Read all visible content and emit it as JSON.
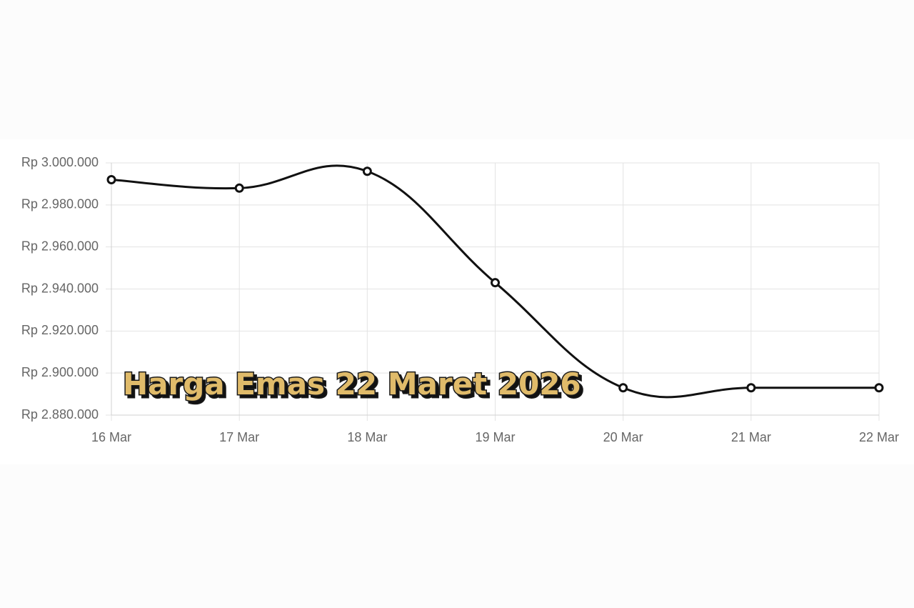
{
  "chart_data": {
    "type": "line",
    "title": "Harga Emas 22 Maret 2026",
    "categories": [
      "16 Mar",
      "17 Mar",
      "18 Mar",
      "19 Mar",
      "20 Mar",
      "21 Mar",
      "22 Mar"
    ],
    "series": [
      {
        "color": "#111111",
        "values": [
          2992000,
          2988000,
          2996000,
          2943000,
          2893000,
          2893000,
          2893000
        ]
      }
    ],
    "ylim": [
      2880000,
      3000000
    ],
    "yticks": [
      {
        "value": 2880000,
        "label": "Rp 2.880.000"
      },
      {
        "value": 2900000,
        "label": "Rp 2.900.000"
      },
      {
        "value": 2920000,
        "label": "Rp 2.920.000"
      },
      {
        "value": 2940000,
        "label": "Rp 2.940.000"
      },
      {
        "value": 2960000,
        "label": "Rp 2.960.000"
      },
      {
        "value": 2980000,
        "label": "Rp 2.980.000"
      },
      {
        "value": 3000000,
        "label": "Rp 3.000.000"
      }
    ],
    "grid": true
  }
}
